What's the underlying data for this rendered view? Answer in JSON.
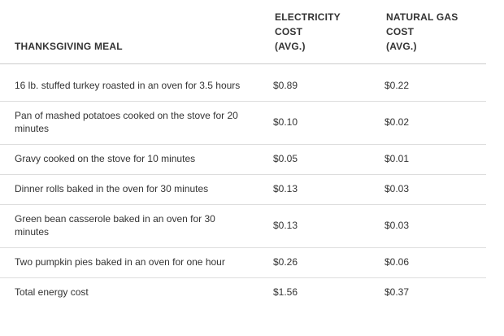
{
  "table": {
    "headers": {
      "meal": [
        "THANKSGIVING MEAL"
      ],
      "electricity": [
        "ELECTRICITY",
        "COST",
        "(AVG.)"
      ],
      "gas": [
        "NATURAL GAS",
        "COST",
        "(AVG.)"
      ]
    },
    "rows": [
      {
        "meal": "16 lb. stuffed turkey roasted in an oven for 3.5 hours",
        "electricity": "$0.89",
        "gas": "$0.22"
      },
      {
        "meal": "Pan of mashed potatoes cooked on the stove for 20 minutes",
        "electricity": "$0.10",
        "gas": "$0.02"
      },
      {
        "meal": "Gravy cooked on the stove for 10 minutes",
        "electricity": "$0.05",
        "gas": "$0.01"
      },
      {
        "meal": "Dinner rolls baked in the oven for 30 minutes",
        "electricity": "$0.13",
        "gas": "$0.03"
      },
      {
        "meal": "Green bean casserole baked in an oven for 30 minutes",
        "electricity": "$0.13",
        "gas": "$0.03"
      },
      {
        "meal": "Two pumpkin pies baked in an oven for one hour",
        "electricity": "$0.26",
        "gas": "$0.06"
      },
      {
        "meal": "Total energy cost",
        "electricity": "$1.56",
        "gas": "$0.37"
      }
    ]
  }
}
